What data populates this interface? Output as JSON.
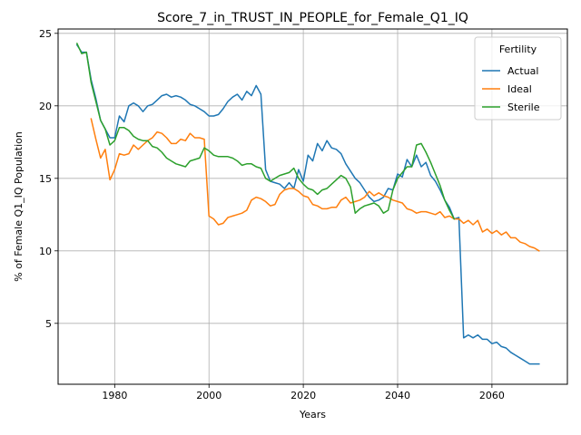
{
  "chart_data": {
    "type": "line",
    "title": "Score_7_in_TRUST_IN_PEOPLE_for_Female_Q1_IQ",
    "xlabel": "Years",
    "ylabel": "% of Female Q1_IQ Population",
    "xlim": [
      1968,
      2076
    ],
    "ylim": [
      0.8,
      25.3
    ],
    "xticks": [
      1980,
      2000,
      2020,
      2040,
      2060
    ],
    "yticks": [
      5,
      10,
      15,
      20,
      25
    ],
    "grid": true,
    "legend": {
      "title": "Fertility",
      "position": "top-right"
    },
    "series": [
      {
        "name": "Actual",
        "color": "#1f77b4",
        "x": [
          1972,
          1973,
          1974,
          1975,
          1976,
          1977,
          1978,
          1979,
          1980,
          1981,
          1982,
          1983,
          1984,
          1985,
          1986,
          1987,
          1988,
          1989,
          1990,
          1991,
          1992,
          1993,
          1994,
          1995,
          1996,
          1997,
          1998,
          1999,
          2000,
          2001,
          2002,
          2003,
          2004,
          2005,
          2006,
          2007,
          2008,
          2009,
          2010,
          2011,
          2012,
          2013,
          2014,
          2015,
          2016,
          2017,
          2018,
          2019,
          2020,
          2021,
          2022,
          2023,
          2024,
          2025,
          2026,
          2027,
          2028,
          2029,
          2030,
          2031,
          2032,
          2033,
          2034,
          2035,
          2036,
          2037,
          2038,
          2039,
          2040,
          2041,
          2042,
          2043,
          2044,
          2045,
          2046,
          2047,
          2048,
          2049,
          2050,
          2051,
          2052,
          2053,
          2054,
          2055,
          2056,
          2057,
          2058,
          2059,
          2060,
          2061,
          2062,
          2063,
          2064,
          2065,
          2066,
          2067,
          2068,
          2069,
          2070
        ],
        "values": [
          24.2,
          23.7,
          23.7,
          21.8,
          20.5,
          19.0,
          18.4,
          17.8,
          17.8,
          19.3,
          18.9,
          20.0,
          20.2,
          20.0,
          19.6,
          20.0,
          20.1,
          20.4,
          20.7,
          20.8,
          20.6,
          20.7,
          20.6,
          20.4,
          20.1,
          20.0,
          19.8,
          19.6,
          19.3,
          19.3,
          19.4,
          19.8,
          20.3,
          20.6,
          20.8,
          20.4,
          21.0,
          20.7,
          21.4,
          20.8,
          15.6,
          14.8,
          14.7,
          14.6,
          14.3,
          14.7,
          14.3,
          15.6,
          14.8,
          16.6,
          16.2,
          17.4,
          16.9,
          17.6,
          17.1,
          17.0,
          16.7,
          16.0,
          15.5,
          15.0,
          14.7,
          14.2,
          13.7,
          13.4,
          13.5,
          13.7,
          14.3,
          14.2,
          15.3,
          15.1,
          16.3,
          15.8,
          16.6,
          15.8,
          16.1,
          15.2,
          14.8,
          14.2,
          13.5,
          13.0,
          12.2,
          12.3,
          4.0,
          4.2,
          4.0,
          4.2,
          3.9,
          3.9,
          3.6,
          3.7,
          3.4,
          3.3,
          3.0,
          2.8,
          2.6,
          2.4,
          2.2,
          2.2,
          2.2
        ]
      },
      {
        "name": "Ideal",
        "color": "#ff7f0e",
        "x": [
          1975,
          1976,
          1977,
          1978,
          1979,
          1980,
          1981,
          1982,
          1983,
          1984,
          1985,
          1986,
          1987,
          1988,
          1989,
          1990,
          1991,
          1992,
          1993,
          1994,
          1995,
          1996,
          1997,
          1998,
          1999,
          2000,
          2001,
          2002,
          2003,
          2004,
          2005,
          2006,
          2007,
          2008,
          2009,
          2010,
          2011,
          2012,
          2013,
          2014,
          2015,
          2016,
          2017,
          2018,
          2019,
          2020,
          2021,
          2022,
          2023,
          2024,
          2025,
          2026,
          2027,
          2028,
          2029,
          2030,
          2031,
          2032,
          2033,
          2034,
          2035,
          2036,
          2037,
          2038,
          2039,
          2040,
          2041,
          2042,
          2043,
          2044,
          2045,
          2046,
          2047,
          2048,
          2049,
          2050,
          2051,
          2052,
          2053,
          2054,
          2055,
          2056,
          2057,
          2058,
          2059,
          2060,
          2061,
          2062,
          2063,
          2064,
          2065,
          2066,
          2067,
          2068,
          2069,
          2070
        ],
        "values": [
          19.1,
          17.7,
          16.4,
          17.0,
          14.9,
          15.6,
          16.7,
          16.6,
          16.7,
          17.3,
          17.0,
          17.3,
          17.6,
          17.8,
          18.2,
          18.1,
          17.8,
          17.4,
          17.4,
          17.7,
          17.6,
          18.1,
          17.8,
          17.8,
          17.7,
          12.4,
          12.2,
          11.8,
          11.9,
          12.3,
          12.4,
          12.5,
          12.6,
          12.8,
          13.5,
          13.7,
          13.6,
          13.4,
          13.1,
          13.2,
          13.9,
          14.2,
          14.3,
          14.3,
          14.1,
          13.8,
          13.7,
          13.2,
          13.1,
          12.9,
          12.9,
          13.0,
          13.0,
          13.5,
          13.7,
          13.3,
          13.4,
          13.5,
          13.7,
          14.1,
          13.8,
          14.0,
          13.8,
          13.7,
          13.5,
          13.4,
          13.3,
          12.9,
          12.8,
          12.6,
          12.7,
          12.7,
          12.6,
          12.5,
          12.7,
          12.3,
          12.4,
          12.2,
          12.2,
          11.9,
          12.1,
          11.8,
          12.1,
          11.3,
          11.5,
          11.2,
          11.4,
          11.1,
          11.3,
          10.9,
          10.9,
          10.6,
          10.5,
          10.3,
          10.2,
          10.0
        ]
      },
      {
        "name": "Sterile",
        "color": "#2ca02c",
        "x": [
          1972,
          1973,
          1974,
          1975,
          1976,
          1977,
          1978,
          1979,
          1980,
          1981,
          1982,
          1983,
          1984,
          1985,
          1986,
          1987,
          1988,
          1989,
          1990,
          1991,
          1992,
          1993,
          1994,
          1995,
          1996,
          1997,
          1998,
          1999,
          2000,
          2001,
          2002,
          2003,
          2004,
          2005,
          2006,
          2007,
          2008,
          2009,
          2010,
          2011,
          2012,
          2013,
          2014,
          2015,
          2016,
          2017,
          2018,
          2019,
          2020,
          2021,
          2022,
          2023,
          2024,
          2025,
          2026,
          2027,
          2028,
          2029,
          2030,
          2031,
          2032,
          2033,
          2034,
          2035,
          2036,
          2037,
          2038,
          2039,
          2040,
          2041,
          2042,
          2043,
          2044,
          2045,
          2046,
          2047,
          2048,
          2049,
          2050,
          2051,
          2052
        ],
        "values": [
          24.3,
          23.6,
          23.7,
          21.6,
          20.3,
          19.0,
          18.4,
          17.3,
          17.6,
          18.5,
          18.5,
          18.3,
          17.9,
          17.7,
          17.6,
          17.6,
          17.2,
          17.1,
          16.8,
          16.4,
          16.2,
          16.0,
          15.9,
          15.8,
          16.2,
          16.3,
          16.4,
          17.1,
          16.9,
          16.6,
          16.5,
          16.5,
          16.5,
          16.4,
          16.2,
          15.9,
          16.0,
          16.0,
          15.8,
          15.7,
          15.0,
          14.8,
          15.0,
          15.2,
          15.3,
          15.4,
          15.7,
          15.0,
          14.6,
          14.3,
          14.2,
          13.9,
          14.2,
          14.3,
          14.6,
          14.9,
          15.2,
          15.0,
          14.4,
          12.6,
          12.9,
          13.1,
          13.2,
          13.3,
          13.1,
          12.6,
          12.8,
          14.2,
          15.0,
          15.4,
          15.8,
          15.8,
          17.3,
          17.4,
          16.8,
          16.1,
          15.3,
          14.5,
          13.5,
          12.8,
          12.2
        ]
      }
    ]
  }
}
